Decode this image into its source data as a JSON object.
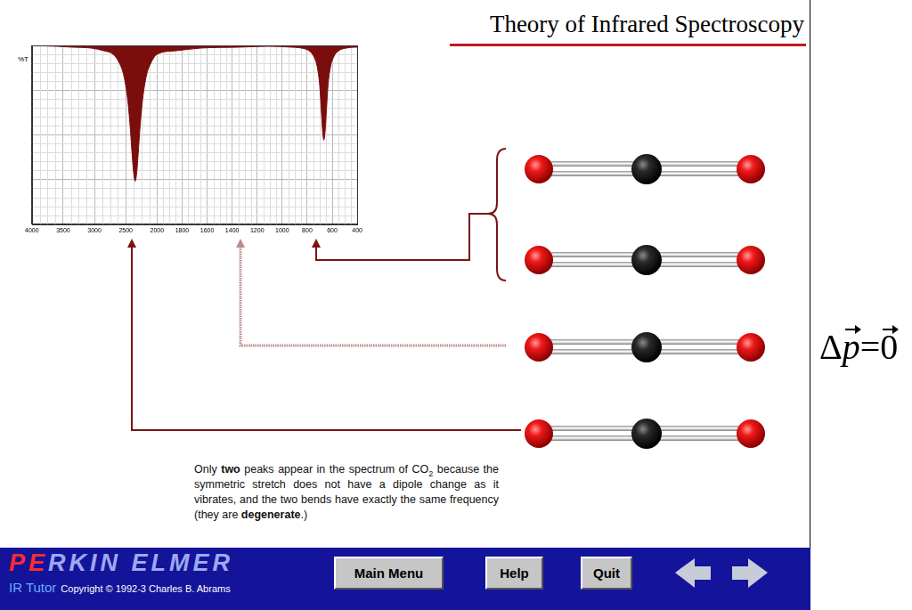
{
  "title": "Theory of Infrared Spectroscopy",
  "chart_data": {
    "type": "line",
    "y_label": "%T",
    "color": "#7b0d0d",
    "x": [
      4000,
      3600,
      3350,
      3050,
      2850,
      2700,
      2600,
      2530,
      2470,
      2430,
      2400,
      2375,
      2349,
      2324,
      2300,
      2270,
      2230,
      2170,
      2100,
      2000,
      1850,
      1650,
      1350,
      1100,
      925,
      845,
      785,
      745,
      720,
      700,
      687,
      677,
      667,
      657,
      647,
      634,
      614,
      589,
      549,
      489,
      410,
      400
    ],
    "values": [
      100,
      99.5,
      99,
      98.5,
      97,
      95,
      90,
      83,
      70,
      55,
      40,
      29,
      24,
      29,
      40,
      55,
      70,
      83,
      90,
      95,
      97,
      98.5,
      99,
      99.5,
      99,
      98.5,
      97,
      93.5,
      88,
      77.5,
      63,
      52,
      47,
      52,
      63,
      77.5,
      88,
      93.5,
      97,
      98.5,
      99,
      99
    ],
    "xlim": [
      4000,
      400
    ],
    "xticks": [
      4000,
      3500,
      3000,
      2500,
      2000,
      1800,
      1600,
      1400,
      1200,
      1000,
      800,
      600,
      400
    ],
    "ylim": [
      0,
      100
    ],
    "yticks": [
      0,
      25,
      50,
      75,
      100
    ],
    "grid": true,
    "tick_labels": "x"
  },
  "caption": [
    {
      "text": "Only "
    },
    {
      "text": "two",
      "bold": true
    },
    {
      "text": " peaks appear in the spectrum of CO"
    },
    {
      "text": "2",
      "subscript": true
    },
    {
      "text": " because the symmetric stretch does not have a dipole change as it vibrates, and the two bends have exactly the same frequency (they are "
    },
    {
      "text": "degenerate",
      "bold": true
    },
    {
      "text": ".)"
    }
  ],
  "toolbar": {
    "brand": "PERKIN ELMER",
    "product": "IR Tutor",
    "copyright": "Copyright © 1992-3 Charles B. Abrams",
    "buttons": [
      "Main Menu",
      "Help",
      "Quit"
    ]
  },
  "formula": [
    {
      "text": "Δ"
    },
    {
      "text": "p",
      "vector": true,
      "italic": true
    },
    {
      "text": "="
    },
    {
      "text": "0",
      "vector": true
    }
  ]
}
